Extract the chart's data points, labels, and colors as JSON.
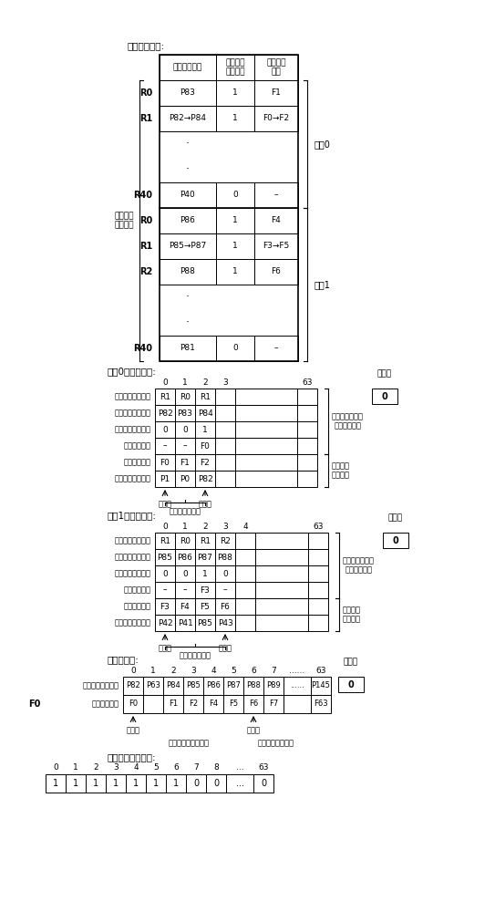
{
  "title": "寄存器映射表:",
  "reg_headers": [
    "物理寄存器号",
    "飞行记分\n牌有效位",
    "飞行记分\n牌号"
  ],
  "reg_rows": [
    [
      "R0",
      "P83",
      "1",
      "F1"
    ],
    [
      "R1",
      "P82→P84",
      "1",
      "F0→F2"
    ],
    [
      "·",
      "",
      "",
      ""
    ],
    [
      "·",
      "",
      "",
      ""
    ],
    [
      "R40",
      "P40",
      "0",
      "–"
    ],
    [
      "R0",
      "P86",
      "1",
      "F4"
    ],
    [
      "R1",
      "P85→P87",
      "1",
      "F3→F5"
    ],
    [
      "R2",
      "P88",
      "1",
      "F6"
    ],
    [
      "·",
      "",
      "",
      ""
    ],
    [
      "·",
      "",
      "",
      ""
    ],
    [
      "R40",
      "P81",
      "0",
      "–"
    ]
  ],
  "thread0_label": "线程0",
  "thread1_label": "线程1",
  "logic_label": "逻辑寄存\n器号索引",
  "ctrl0_title": "线程0的控制列表:",
  "ctrl0_rows": [
    [
      "飞行逻辑寄存器号",
      "R1",
      "R0",
      "R1",
      ""
    ],
    [
      "飞行物理寄存器号",
      "P82",
      "P83",
      "P84",
      ""
    ],
    [
      "历史记分牌有效位",
      "0",
      "0",
      "1",
      ""
    ],
    [
      "历史记分牌号",
      "–",
      "–",
      "F0",
      ""
    ],
    [
      "飞行记分牌号",
      "F0",
      "F1",
      "F2",
      ""
    ],
    [
      "历史物理寄存器号",
      "P1",
      "P0",
      "P82",
      ""
    ]
  ],
  "ctrl0_col_nums": [
    "0",
    "1",
    "2",
    "3",
    "63"
  ],
  "ctrl1_title": "线程1的控制列表:",
  "ctrl1_rows": [
    [
      "飞行逻辑寄存器号",
      "R1",
      "R0",
      "R1",
      "R2",
      ""
    ],
    [
      "飞行物理寄存器号",
      "P85",
      "P86",
      "P87",
      "P88",
      ""
    ],
    [
      "历史记分牌有效位",
      "0",
      "0",
      "1",
      "0",
      ""
    ],
    [
      "历史记分牌号",
      "–",
      "–",
      "F3",
      "–",
      ""
    ],
    [
      "飞行记分牌号",
      "F3",
      "F4",
      "F5",
      "F6",
      ""
    ],
    [
      "历史物理寄存器号",
      "P42",
      "P41",
      "P85",
      "P43",
      ""
    ]
  ],
  "ctrl1_col_nums": [
    "0",
    "1",
    "2",
    "3",
    "4",
    "63"
  ],
  "free_title": "总空闲列表:",
  "free_col_nums": [
    "0",
    "1",
    "2",
    "3",
    "4",
    "5",
    "6",
    "7",
    "......",
    "63"
  ],
  "free_phys": [
    "P82",
    "P63",
    "P84",
    "P85",
    "P86",
    "P87",
    "P88",
    "P89",
    "......",
    "P145"
  ],
  "free_score": [
    "F0",
    "",
    "F1",
    "F2",
    "F4",
    "F5",
    "F6",
    "F7",
    "",
    "F63"
  ],
  "free_row_labels": [
    "空闲物理寄存器号",
    "空闲记分牌号"
  ],
  "sb_title": "飞行记分牌屏蔽位:",
  "sb_col_nums": [
    "0",
    "1",
    "2",
    "3",
    "4",
    "5",
    "6",
    "7",
    "8",
    "...",
    "63"
  ],
  "sb_row": [
    "1",
    "1",
    "1",
    "1",
    "1",
    "1",
    "1",
    "0",
    "0",
    "...",
    "0"
  ],
  "full_flag": "满标志",
  "full_val": "0",
  "use_transfer": "用于转移预测失\n败或异常回退",
  "use_commit": "用于指令\n提交回收",
  "head_ptr": "头指针",
  "tail_ptr": "尾指针",
  "flying_info": "飞行的指令信息",
  "alloc_label": "已分配的物理寄存器",
  "free_reg_label": "空闲的物理寄存器",
  "f0_label": "F0"
}
